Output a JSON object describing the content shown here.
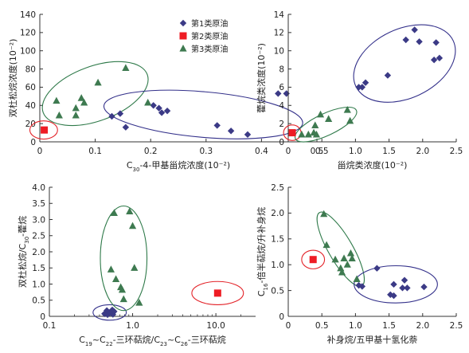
{
  "colors": {
    "type1": "#3b3a86",
    "type2": "#ee1c24",
    "type3": "#3e7a50",
    "ellipse_type1": "#33308a",
    "ellipse_type2": "#e32228",
    "ellipse_type3": "#2f7a4a",
    "axis": "#333333"
  },
  "chart_data": [
    {
      "type": "scatter",
      "title": "",
      "xlabel": "C30-4-甲基甾烷浓度(10⁻²)",
      "ylabel": "双杜松烷浓度(10⁻²)",
      "xlim": [
        0,
        0.5
      ],
      "ylim": [
        0,
        140
      ],
      "xticks": [
        0,
        0.1,
        0.2,
        0.3,
        0.4,
        0.5
      ],
      "xtick_labels": [
        "0",
        "0.1",
        "0.2",
        "0.3",
        "0.4",
        "0.5"
      ],
      "yticks": [
        0,
        20,
        40,
        60,
        80,
        100,
        120,
        140
      ],
      "ytick_labels": [
        "0",
        "20",
        "40",
        "60",
        "80",
        "100",
        "120",
        "140"
      ],
      "legend": {
        "placement": "top-right",
        "entries": [
          {
            "series": "type1",
            "label": "第1类原油",
            "marker": "diamond"
          },
          {
            "series": "type2",
            "label": "第2类原油",
            "marker": "square"
          },
          {
            "series": "type3",
            "label": "第3类原油",
            "marker": "triangle"
          }
        ]
      },
      "series": [
        {
          "name": "第1类原油",
          "key": "type1",
          "marker": "diamond",
          "points": [
            [
              0.13,
              28
            ],
            [
              0.145,
              31
            ],
            [
              0.155,
              16
            ],
            [
              0.205,
              40
            ],
            [
              0.215,
              37
            ],
            [
              0.22,
              32
            ],
            [
              0.23,
              34
            ],
            [
              0.32,
              18
            ],
            [
              0.345,
              12
            ],
            [
              0.375,
              8
            ],
            [
              0.43,
              53
            ],
            [
              0.445,
              53
            ]
          ]
        },
        {
          "name": "第2类原油",
          "key": "type2",
          "marker": "square",
          "points": [
            [
              0.008,
              13
            ]
          ]
        },
        {
          "name": "第3类原油",
          "key": "type3",
          "marker": "triangle",
          "points": [
            [
              0.03,
              45
            ],
            [
              0.035,
              29
            ],
            [
              0.065,
              29
            ],
            [
              0.065,
              37
            ],
            [
              0.075,
              48
            ],
            [
              0.08,
              43
            ],
            [
              0.105,
              65
            ],
            [
              0.155,
              81
            ],
            [
              0.195,
              43
            ]
          ]
        }
      ],
      "ellipses": [
        {
          "key": "type2",
          "cx": 0.007,
          "cy": 13,
          "rx": 0.025,
          "ry": 10,
          "angle": 0
        },
        {
          "key": "type3",
          "cx": 0.1,
          "cy": 53,
          "rx": 0.1,
          "ry": 30,
          "angle": -20
        },
        {
          "key": "type1",
          "cx": 0.295,
          "cy": 30,
          "rx": 0.18,
          "ry": 25,
          "angle": 5
        }
      ]
    },
    {
      "type": "scatter",
      "title": "",
      "xlabel": "甾烷类浓度(10⁻²)",
      "ylabel": "藿烷类浓度(10⁻²)",
      "xlim": [
        0,
        2.5
      ],
      "ylim": [
        0,
        14
      ],
      "xticks": [
        0,
        0.5,
        1.0,
        1.5,
        2.0,
        2.5
      ],
      "xtick_labels": [
        "0",
        "0.5",
        "1.0",
        "1.5",
        "2.0",
        "2.5"
      ],
      "yticks": [
        0,
        2,
        4,
        6,
        8,
        10,
        12,
        14
      ],
      "ytick_labels": [
        "0",
        "2",
        "4",
        "6",
        "8",
        "10",
        "12",
        "14"
      ],
      "series": [
        {
          "name": "第1类原油",
          "key": "type1",
          "marker": "diamond",
          "points": [
            [
              1.05,
              6.0
            ],
            [
              1.1,
              6.0
            ],
            [
              1.15,
              6.5
            ],
            [
              1.48,
              7.3
            ],
            [
              1.75,
              11.2
            ],
            [
              1.88,
              12.3
            ],
            [
              1.95,
              11.0
            ],
            [
              2.17,
              9.0
            ],
            [
              2.2,
              10.9
            ],
            [
              2.25,
              9.2
            ]
          ]
        },
        {
          "name": "第2类原油",
          "key": "type2",
          "marker": "square",
          "points": [
            [
              0.06,
              1.0
            ]
          ]
        },
        {
          "name": "第3类原油",
          "key": "type3",
          "marker": "triangle",
          "points": [
            [
              0.2,
              0.8
            ],
            [
              0.3,
              0.8
            ],
            [
              0.38,
              1.0
            ],
            [
              0.4,
              1.8
            ],
            [
              0.42,
              0.8
            ],
            [
              0.48,
              3.0
            ],
            [
              0.6,
              2.5
            ],
            [
              0.88,
              3.5
            ],
            [
              0.92,
              2.3
            ]
          ]
        }
      ],
      "ellipses": [
        {
          "key": "type2",
          "cx": 0.06,
          "cy": 1.0,
          "rx": 0.13,
          "ry": 0.85,
          "angle": 0
        },
        {
          "key": "type3",
          "cx": 0.56,
          "cy": 1.9,
          "rx": 0.5,
          "ry": 1.2,
          "angle": -25
        },
        {
          "key": "type1",
          "cx": 1.73,
          "cy": 8.6,
          "rx": 0.8,
          "ry": 3.8,
          "angle": -25
        }
      ]
    },
    {
      "type": "scatter",
      "title": "",
      "xlabel": "C19~C22-三环萜烷/C23~C26-三环萜烷",
      "ylabel": "双杜松烷/C30-藿烷",
      "xscale": "log",
      "xlim": [
        0.1,
        30
      ],
      "ylim": [
        0,
        4.0
      ],
      "xticks": [
        0.1,
        1.0,
        10.0
      ],
      "xtick_labels": [
        "0.1",
        "1.0",
        "10.0"
      ],
      "yticks": [
        0,
        0.5,
        1.0,
        1.5,
        2.0,
        2.5,
        3.0,
        3.5,
        4.0
      ],
      "ytick_labels": [
        "0",
        "0.5",
        "1.0",
        "1.5",
        "2.0",
        "2.5",
        "3.0",
        "3.5",
        "4.0"
      ],
      "series": [
        {
          "name": "第1类原油",
          "key": "type1",
          "marker": "diamond",
          "points": [
            [
              0.46,
              0.08
            ],
            [
              0.49,
              0.18
            ],
            [
              0.5,
              0.05
            ],
            [
              0.53,
              0.12
            ],
            [
              0.55,
              0.1
            ],
            [
              0.57,
              0.2
            ],
            [
              0.58,
              0.06
            ],
            [
              0.6,
              0.15
            ]
          ]
        },
        {
          "name": "第2类原油",
          "key": "type2",
          "marker": "square",
          "points": [
            [
              10.5,
              0.72
            ]
          ]
        },
        {
          "name": "第3类原油",
          "key": "type3",
          "marker": "triangle",
          "points": [
            [
              0.55,
              1.45
            ],
            [
              0.6,
              3.2
            ],
            [
              0.63,
              1.15
            ],
            [
              0.72,
              0.9
            ],
            [
              0.75,
              0.82
            ],
            [
              0.78,
              0.53
            ],
            [
              0.92,
              3.25
            ],
            [
              1.0,
              2.8
            ],
            [
              1.05,
              1.5
            ],
            [
              1.2,
              0.42
            ]
          ]
        }
      ],
      "ellipses": [
        {
          "key": "type1",
          "cx": 0.53,
          "cy": 0.12,
          "rx": 0.2,
          "ry": 0.24,
          "angle": 0
        },
        {
          "key": "type3",
          "cx": 0.78,
          "cy": 1.8,
          "rx": 0.28,
          "ry": 1.62,
          "angle": 0
        },
        {
          "key": "type2",
          "cx": 10.5,
          "cy": 0.72,
          "rx": 0.31,
          "ry": 0.36,
          "angle": 0
        }
      ]
    },
    {
      "type": "scatter",
      "title": "",
      "xlabel": "补身烷/五甲基十氢化萘",
      "ylabel": "C16-倍半萜烷/升补身烷",
      "xlim": [
        0,
        2.5
      ],
      "ylim": [
        0,
        2.5
      ],
      "xticks": [
        0,
        0.5,
        1.0,
        1.5,
        2.0,
        2.5
      ],
      "xtick_labels": [
        "0",
        "0.5",
        "1.0",
        "1.5",
        "2.0",
        "2.5"
      ],
      "yticks": [
        0,
        0.5,
        1.0,
        1.5,
        2.0,
        2.5
      ],
      "ytick_labels": [
        "0",
        "0.5",
        "1.0",
        "1.5",
        "2.0",
        "2.5"
      ],
      "series": [
        {
          "name": "第1类原油",
          "key": "type1",
          "marker": "diamond",
          "points": [
            [
              1.05,
              0.6
            ],
            [
              1.1,
              0.58
            ],
            [
              1.32,
              0.93
            ],
            [
              1.52,
              0.42
            ],
            [
              1.57,
              0.4
            ],
            [
              1.57,
              0.62
            ],
            [
              1.7,
              0.55
            ],
            [
              1.73,
              0.7
            ],
            [
              1.77,
              0.55
            ],
            [
              2.02,
              0.57
            ]
          ]
        },
        {
          "name": "第2类原油",
          "key": "type2",
          "marker": "square",
          "points": [
            [
              0.37,
              1.1
            ]
          ]
        },
        {
          "name": "第3类原油",
          "key": "type3",
          "marker": "triangle",
          "points": [
            [
              0.53,
              1.98
            ],
            [
              0.57,
              1.38
            ],
            [
              0.7,
              1.1
            ],
            [
              0.78,
              0.93
            ],
            [
              0.8,
              0.85
            ],
            [
              0.83,
              1.12
            ],
            [
              0.88,
              1.0
            ],
            [
              0.93,
              1.22
            ],
            [
              0.95,
              1.12
            ],
            [
              1.02,
              0.72
            ]
          ]
        }
      ],
      "ellipses": [
        {
          "key": "type2",
          "cx": 0.37,
          "cy": 1.1,
          "rx": 0.17,
          "ry": 0.18,
          "angle": 0
        },
        {
          "key": "type3",
          "cx": 0.78,
          "cy": 1.3,
          "rx": 0.18,
          "ry": 0.82,
          "angle": -30
        },
        {
          "key": "type1",
          "cx": 1.6,
          "cy": 0.62,
          "rx": 0.62,
          "ry": 0.36,
          "angle": 0
        }
      ]
    }
  ]
}
